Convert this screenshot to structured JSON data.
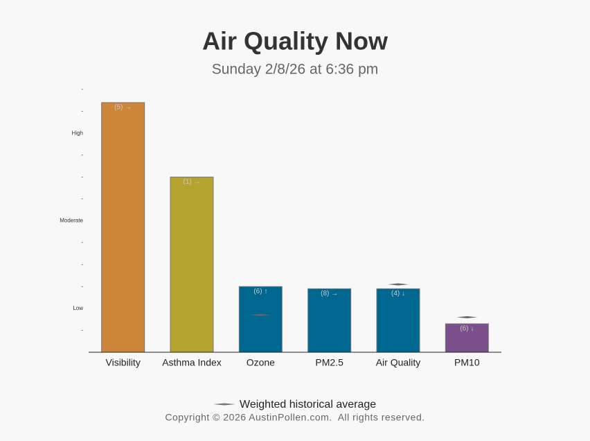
{
  "chart_data": {
    "type": "bar",
    "title": "Air Quality Now",
    "subtitle": "Sunday 2/8/26 at 6:36 pm",
    "categories": [
      "Visibility",
      "Asthma Index",
      "Ozone",
      "PM2.5",
      "Air Quality",
      "PM10"
    ],
    "values": [
      11.4,
      8.0,
      3.0,
      2.9,
      2.9,
      1.3
    ],
    "colors": [
      "#cd853a",
      "#b5a330",
      "#006890",
      "#006890",
      "#006890",
      "#7b4f8c"
    ],
    "annotations": [
      "(5) →",
      "(1) →",
      "(6) ↑",
      "(8) →",
      "(4) ↓",
      "(6) ↓"
    ],
    "historical": {
      "name": "Weighted historical average",
      "values": [
        null,
        null,
        1.7,
        null,
        3.1,
        1.6
      ]
    },
    "ylim": [
      0,
      12
    ],
    "yticks": [
      {
        "value": 1,
        "label": "-"
      },
      {
        "value": 2,
        "label": "Low"
      },
      {
        "value": 3,
        "label": "-"
      },
      {
        "value": 4,
        "label": "-"
      },
      {
        "value": 5,
        "label": "-"
      },
      {
        "value": 6,
        "label": "Moderate"
      },
      {
        "value": 7,
        "label": "-"
      },
      {
        "value": 8,
        "label": "-"
      },
      {
        "value": 9,
        "label": "-"
      },
      {
        "value": 10,
        "label": "High"
      },
      {
        "value": 11,
        "label": "-"
      },
      {
        "value": 12,
        "label": "-"
      }
    ],
    "footer": "Copyright © 2026 AustinPollen.com.  All rights reserved."
  }
}
